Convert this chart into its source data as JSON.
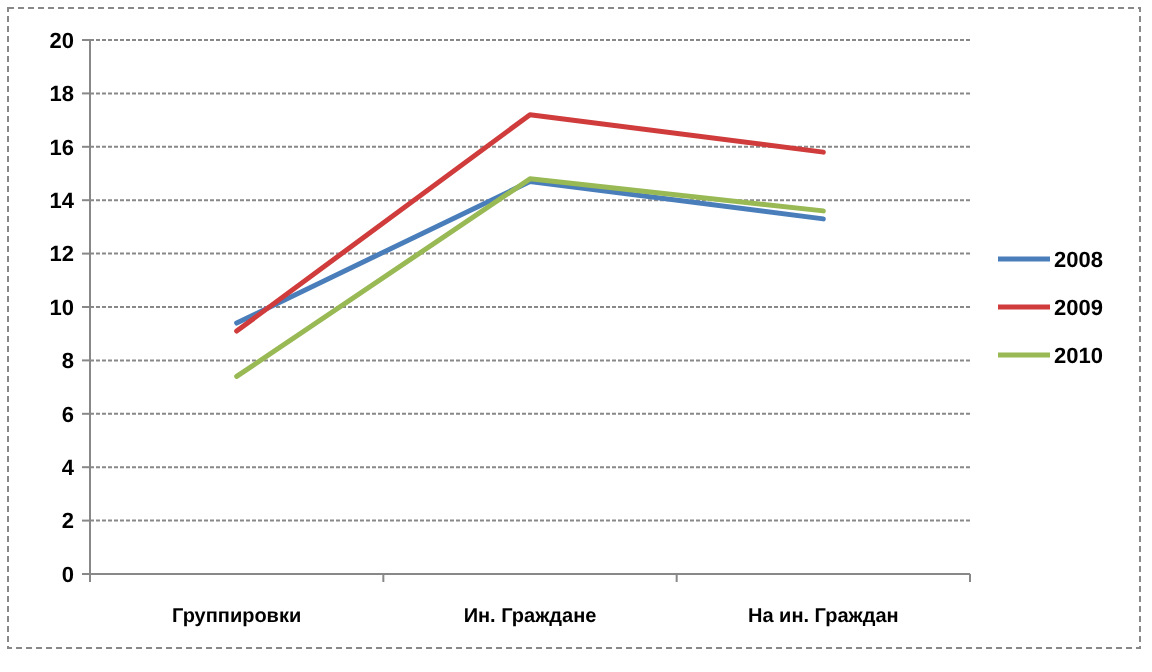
{
  "chart_data": {
    "type": "line",
    "categories": [
      "Группировки",
      "Ин. Граждане",
      "На ин. Граждан"
    ],
    "series": [
      {
        "name": "2008",
        "color": "#4a7ebb",
        "values": [
          9.4,
          14.7,
          13.3
        ]
      },
      {
        "name": "2009",
        "color": "#d03c3c",
        "values": [
          9.1,
          17.2,
          15.8
        ]
      },
      {
        "name": "2010",
        "color": "#98b954",
        "values": [
          7.4,
          14.8,
          13.6
        ]
      }
    ],
    "ylim": [
      0,
      20
    ],
    "yticks": [
      0,
      2,
      4,
      6,
      8,
      10,
      12,
      14,
      16,
      18,
      20
    ],
    "grid": "y",
    "legend": "right",
    "marker": "none",
    "line_style": "solid"
  }
}
